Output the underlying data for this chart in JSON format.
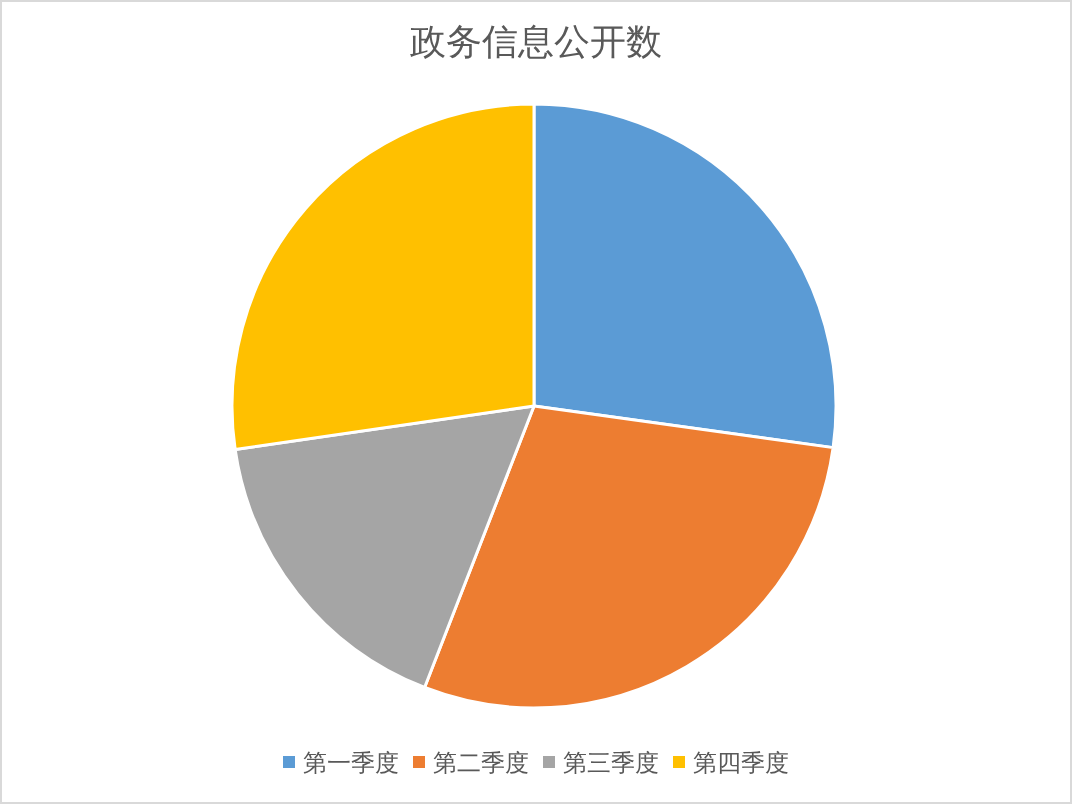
{
  "chart_data": {
    "type": "pie",
    "title": "政务信息公开数",
    "categories": [
      "第一季度",
      "第二季度",
      "第三季度",
      "第四季度"
    ],
    "values": [
      27.2,
      28.7,
      16.8,
      27.3
    ],
    "colors": [
      "#5b9bd5",
      "#ed7d31",
      "#a5a5a5",
      "#ffc000"
    ],
    "legend": "bottom"
  }
}
